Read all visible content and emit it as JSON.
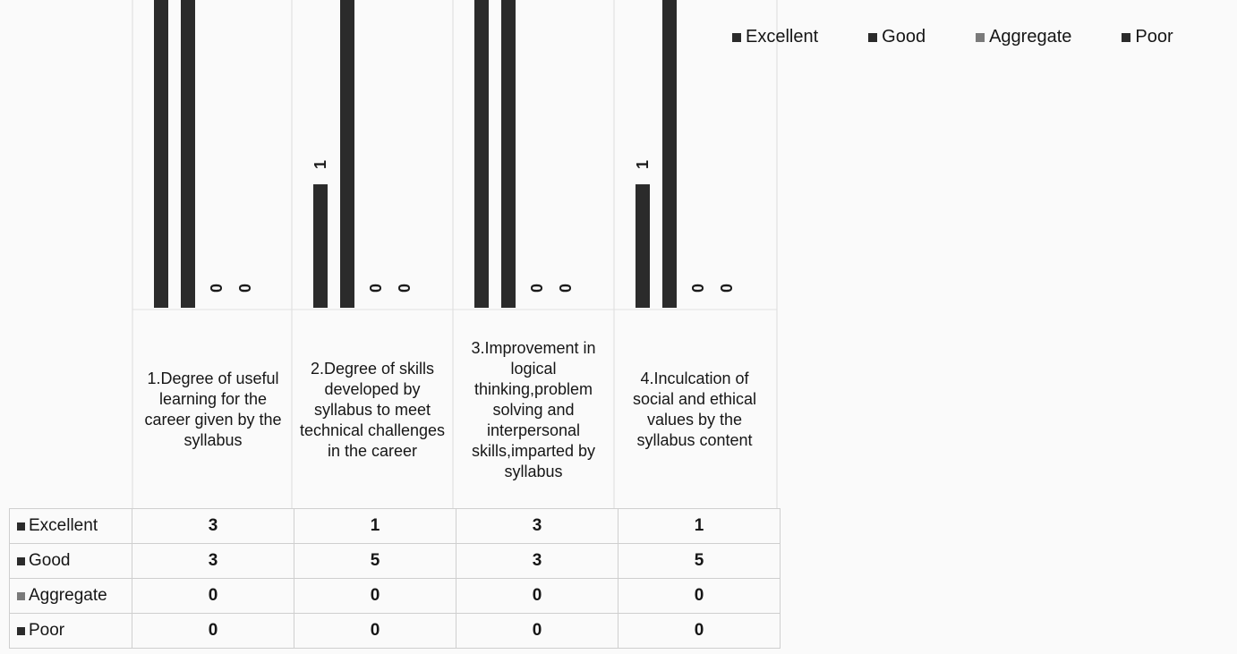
{
  "chart_data": {
    "type": "bar",
    "categories": [
      "1.Degree of useful learning for the career given by the syllabus",
      "2.Degree of skills developed by syllabus to meet technical challenges in the career",
      "3.Improvement in logical thinking,problem solving and interpersonal skills,imparted by syllabus",
      "4.Inculcation of social and ethical values by the syllabus content"
    ],
    "series": [
      {
        "name": "Excellent",
        "values": [
          3,
          1,
          3,
          1
        ],
        "color": "#2b2b2b"
      },
      {
        "name": "Good",
        "values": [
          3,
          5,
          3,
          5
        ],
        "color": "#2b2b2b"
      },
      {
        "name": "Aggregate",
        "values": [
          0,
          0,
          0,
          0
        ],
        "color": "#7a7a7a"
      },
      {
        "name": "Poor",
        "values": [
          0,
          0,
          0,
          0
        ],
        "color": "#2b2b2b"
      }
    ],
    "legend_position": "top-right",
    "data_labels": true,
    "data_table": true,
    "grid": false
  }
}
